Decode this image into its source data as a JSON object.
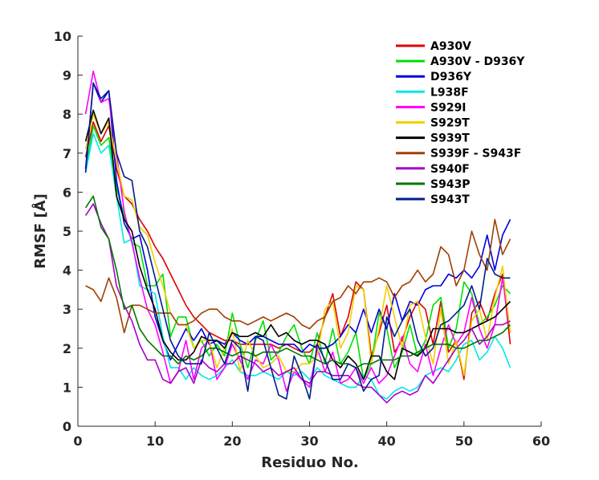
{
  "chart_data": {
    "type": "line",
    "title": "",
    "xlabel": "Residuo No.",
    "ylabel": "RMSF [Å]",
    "xlim": [
      0,
      60
    ],
    "ylim": [
      0,
      10
    ],
    "xticks": [
      "0",
      "10",
      "20",
      "30",
      "40",
      "50",
      "60"
    ],
    "yticks": [
      "0",
      "1",
      "2",
      "3",
      "4",
      "5",
      "6",
      "7",
      "8",
      "9",
      "10"
    ],
    "grid": false,
    "legend_position": "top-right",
    "x": [
      1,
      2,
      3,
      4,
      5,
      6,
      7,
      8,
      9,
      10,
      11,
      12,
      13,
      14,
      15,
      16,
      17,
      18,
      19,
      20,
      21,
      22,
      23,
      24,
      25,
      26,
      27,
      28,
      29,
      30,
      31,
      32,
      33,
      34,
      35,
      36,
      37,
      38,
      39,
      40,
      41,
      42,
      43,
      44,
      45,
      46,
      47,
      48,
      49,
      50,
      51,
      52,
      53,
      54,
      55,
      56
    ],
    "series": [
      {
        "name": "A930V",
        "color": "#e00000",
        "values": [
          6.9,
          7.8,
          7.3,
          7.7,
          6.6,
          5.9,
          5.7,
          5.3,
          5.0,
          4.6,
          4.3,
          3.9,
          3.5,
          3.1,
          2.8,
          2.6,
          2.4,
          2.3,
          2.2,
          2.2,
          2.1,
          2.1,
          2.1,
          2.1,
          2.1,
          2.0,
          2.1,
          2.0,
          1.9,
          1.9,
          2.1,
          2.8,
          3.4,
          2.3,
          2.8,
          3.7,
          3.5,
          1.8,
          2.4,
          3.1,
          1.9,
          2.2,
          2.8,
          3.2,
          3.0,
          2.1,
          3.2,
          1.9,
          2.2,
          1.2,
          2.9,
          3.2,
          2.7,
          3.4,
          3.9,
          2.1
        ]
      },
      {
        "name": "A930V - D936Y",
        "color": "#00e000",
        "values": [
          6.6,
          7.7,
          7.2,
          7.4,
          6.1,
          5.4,
          4.7,
          4.6,
          3.6,
          3.6,
          3.9,
          2.3,
          2.8,
          2.8,
          2.0,
          2.2,
          1.8,
          2.1,
          1.8,
          2.9,
          2.1,
          1.5,
          2.2,
          2.7,
          1.7,
          1.9,
          2.3,
          2.6,
          2.0,
          1.6,
          2.4,
          1.6,
          2.5,
          1.6,
          1.9,
          2.4,
          1.2,
          1.6,
          2.9,
          2.5,
          1.5,
          1.9,
          2.6,
          1.8,
          2.2,
          3.1,
          3.3,
          2.0,
          2.5,
          3.7,
          3.4,
          2.6,
          2.8,
          3.1,
          3.6,
          3.4
        ]
      },
      {
        "name": "D936Y",
        "color": "#0000e0",
        "values": [
          6.6,
          8.8,
          8.3,
          8.6,
          6.3,
          5.2,
          4.8,
          4.9,
          4.0,
          2.8,
          2.2,
          1.7,
          2.1,
          2.5,
          2.2,
          2.5,
          2.1,
          2.2,
          2.1,
          2.4,
          2.2,
          2.1,
          2.3,
          2.3,
          2.2,
          2.1,
          2.1,
          2.1,
          1.9,
          2.1,
          2.0,
          2.0,
          2.1,
          2.3,
          2.6,
          2.4,
          3.0,
          2.4,
          3.0,
          2.5,
          3.4,
          2.7,
          3.2,
          3.1,
          3.5,
          3.6,
          3.6,
          3.9,
          3.8,
          4.0,
          3.8,
          4.1,
          4.9,
          4.0,
          4.9,
          5.3
        ]
      },
      {
        "name": "L938F",
        "color": "#00e8e8",
        "values": [
          6.5,
          7.5,
          7.0,
          7.2,
          5.9,
          4.7,
          4.8,
          3.6,
          3.5,
          3.4,
          2.3,
          1.5,
          1.5,
          1.2,
          1.5,
          1.3,
          1.2,
          1.3,
          1.5,
          1.7,
          1.4,
          1.3,
          1.3,
          1.4,
          1.3,
          1.2,
          1.4,
          1.3,
          1.4,
          1.2,
          1.5,
          1.3,
          1.2,
          1.1,
          1.0,
          1.0,
          1.3,
          1.2,
          0.8,
          0.7,
          0.9,
          1.0,
          0.9,
          1.0,
          1.3,
          1.4,
          1.5,
          1.4,
          1.7,
          2.1,
          2.2,
          1.7,
          1.9,
          2.3,
          2.0,
          1.5
        ]
      },
      {
        "name": "S929I",
        "color": "#ff00ff",
        "values": [
          8.0,
          9.1,
          8.3,
          8.4,
          7.0,
          5.5,
          4.7,
          3.8,
          3.0,
          2.6,
          1.9,
          1.1,
          1.4,
          2.2,
          1.2,
          2.0,
          2.2,
          1.2,
          1.5,
          2.1,
          1.7,
          1.2,
          1.7,
          1.6,
          2.1,
          1.7,
          0.9,
          1.4,
          1.2,
          1.0,
          2.0,
          1.4,
          1.9,
          1.1,
          1.2,
          1.5,
          1.1,
          1.5,
          1.1,
          1.3,
          1.8,
          2.3,
          1.6,
          1.4,
          2.1,
          1.3,
          2.0,
          2.6,
          2.1,
          2.4,
          3.3,
          2.5,
          2.0,
          2.6,
          3.8,
          2.4
        ]
      },
      {
        "name": "S929T",
        "color": "#f0d000",
        "values": [
          7.1,
          8.0,
          7.5,
          7.8,
          6.8,
          5.9,
          5.8,
          5.1,
          4.9,
          4.2,
          3.6,
          2.9,
          2.6,
          2.6,
          2.0,
          2.2,
          2.2,
          1.5,
          2.0,
          2.5,
          1.4,
          2.2,
          1.8,
          1.5,
          1.6,
          1.8,
          1.4,
          1.4,
          1.6,
          1.6,
          1.8,
          3.0,
          3.2,
          2.0,
          2.4,
          3.6,
          3.5,
          1.6,
          2.5,
          3.6,
          2.8,
          2.0,
          3.1,
          3.2,
          2.3,
          1.6,
          3.0,
          1.6,
          2.2,
          1.3,
          2.7,
          3.0,
          2.2,
          3.3,
          4.1,
          2.4
        ]
      },
      {
        "name": "S939T",
        "color": "#000000",
        "values": [
          7.3,
          8.1,
          7.5,
          7.9,
          5.9,
          5.3,
          5.0,
          4.1,
          3.5,
          3.0,
          2.2,
          1.9,
          1.7,
          1.7,
          1.9,
          2.3,
          2.2,
          2.2,
          2.0,
          2.4,
          2.3,
          2.3,
          2.4,
          2.3,
          2.6,
          2.3,
          2.4,
          2.2,
          2.1,
          2.2,
          2.2,
          2.1,
          1.7,
          1.5,
          1.8,
          1.6,
          1.2,
          1.8,
          1.8,
          1.4,
          1.2,
          2.0,
          1.9,
          1.8,
          2.0,
          2.5,
          2.5,
          2.5,
          2.4,
          2.4,
          2.5,
          2.6,
          2.7,
          2.8,
          3.0,
          3.2
        ]
      },
      {
        "name": "S939F - S943F",
        "color": "#a04000",
        "values": [
          3.6,
          3.5,
          3.2,
          3.8,
          3.3,
          2.4,
          3.1,
          3.1,
          3.0,
          2.9,
          2.9,
          2.9,
          2.6,
          2.6,
          2.7,
          2.9,
          3.0,
          3.0,
          2.8,
          2.7,
          2.7,
          2.6,
          2.7,
          2.8,
          2.7,
          2.8,
          2.9,
          2.8,
          2.6,
          2.5,
          2.7,
          2.8,
          3.2,
          3.3,
          3.6,
          3.4,
          3.7,
          3.7,
          3.8,
          3.7,
          3.3,
          3.6,
          3.7,
          4.0,
          3.7,
          3.9,
          4.6,
          4.4,
          3.6,
          4.0,
          5.0,
          4.4,
          4.0,
          5.3,
          4.4,
          4.8
        ]
      },
      {
        "name": "S940F",
        "color": "#aa00cc",
        "values": [
          5.4,
          5.7,
          5.2,
          4.8,
          3.6,
          3.1,
          2.7,
          2.1,
          1.7,
          1.7,
          1.2,
          1.1,
          1.4,
          1.5,
          1.1,
          1.7,
          1.5,
          1.4,
          1.6,
          1.6,
          1.8,
          1.7,
          1.6,
          1.4,
          1.5,
          1.3,
          1.4,
          1.5,
          1.2,
          1.1,
          1.4,
          1.4,
          1.3,
          1.3,
          1.3,
          1.1,
          1.0,
          1.0,
          0.8,
          0.6,
          0.8,
          0.9,
          0.8,
          0.9,
          1.3,
          1.1,
          1.4,
          1.7,
          2.0,
          2.2,
          2.5,
          2.1,
          2.3,
          2.6,
          2.6,
          2.7
        ]
      },
      {
        "name": "S943P",
        "color": "#007800",
        "values": [
          5.6,
          5.9,
          5.1,
          4.8,
          4.0,
          3.0,
          3.1,
          2.5,
          2.2,
          2.0,
          1.8,
          1.8,
          1.6,
          1.8,
          1.7,
          1.8,
          2.0,
          2.0,
          1.9,
          1.8,
          1.9,
          1.9,
          1.8,
          1.9,
          1.9,
          1.9,
          2.0,
          1.9,
          1.8,
          1.8,
          1.7,
          1.6,
          1.7,
          1.6,
          1.6,
          1.5,
          1.6,
          1.6,
          1.7,
          1.7,
          1.7,
          1.8,
          1.8,
          1.9,
          2.0,
          2.1,
          2.1,
          2.1,
          2.0,
          2.0,
          2.1,
          2.2,
          2.2,
          2.3,
          2.4,
          2.6
        ]
      },
      {
        "name": "S943T",
        "color": "#001e8c",
        "values": [
          6.5,
          8.8,
          8.4,
          8.6,
          7.0,
          6.4,
          6.3,
          5.0,
          4.6,
          3.8,
          3.0,
          2.2,
          1.8,
          1.6,
          1.6,
          1.6,
          2.4,
          2.0,
          1.6,
          2.2,
          2.0,
          0.9,
          2.3,
          2.2,
          1.5,
          0.8,
          0.7,
          1.8,
          1.3,
          0.7,
          2.1,
          1.7,
          1.2,
          1.2,
          1.6,
          1.5,
          0.9,
          1.2,
          1.3,
          2.8,
          2.3,
          2.7,
          3.0,
          2.2,
          1.8,
          2.0,
          2.6,
          2.7,
          2.9,
          3.1,
          3.6,
          3.0,
          4.3,
          3.9,
          3.8,
          3.8
        ]
      }
    ]
  }
}
